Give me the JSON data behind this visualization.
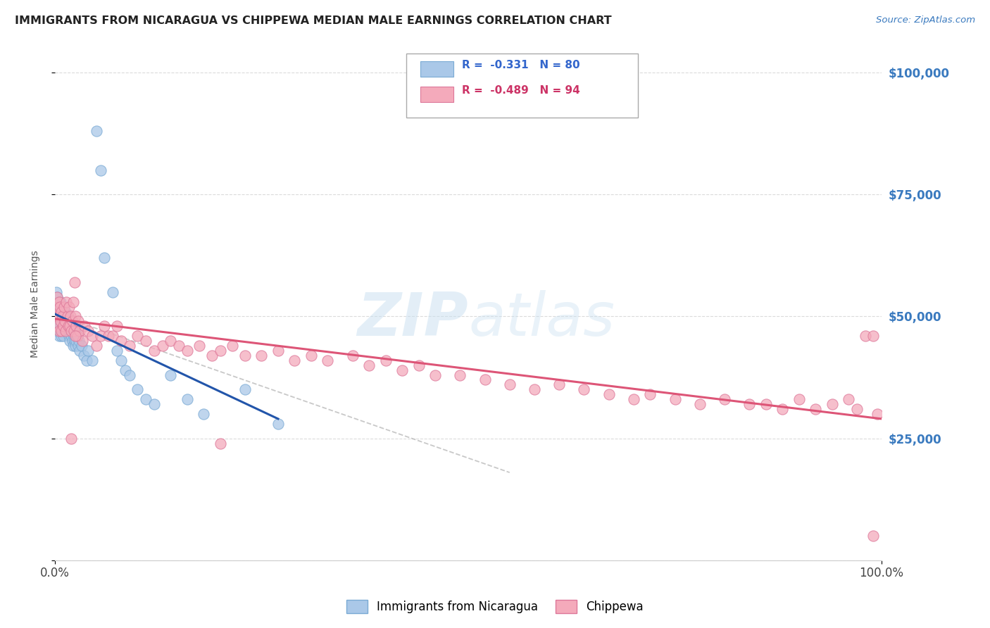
{
  "title": "IMMIGRANTS FROM NICARAGUA VS CHIPPEWA MEDIAN MALE EARNINGS CORRELATION CHART",
  "source": "Source: ZipAtlas.com",
  "ylabel": "Median Male Earnings",
  "yticks": [
    0,
    25000,
    50000,
    75000,
    100000
  ],
  "ytick_labels_right": [
    "",
    "$25,000",
    "$50,000",
    "$75,000",
    "$100,000"
  ],
  "xlim": [
    0.0,
    1.0
  ],
  "ylim": [
    0,
    105000
  ],
  "bg_color": "#ffffff",
  "grid_color": "#d8d8d8",
  "title_color": "#222222",
  "right_tick_color": "#3a7abf",
  "watermark_color": "#c8dff0",
  "blue_scatter_color": "#aac8e8",
  "blue_scatter_edge": "#7aaad4",
  "pink_scatter_color": "#f4aabb",
  "pink_scatter_edge": "#dd7799",
  "blue_trend_color": "#2255aa",
  "pink_trend_color": "#dd5577",
  "dashed_trend_color": "#bbbbbb",
  "legend_R1": "R =  -0.331   N = 80",
  "legend_R2": "R =  -0.489   N = 94",
  "legend_color1": "#3366cc",
  "legend_color2": "#cc3366",
  "blue_x": [
    0.001,
    0.001,
    0.002,
    0.002,
    0.002,
    0.003,
    0.003,
    0.003,
    0.004,
    0.004,
    0.004,
    0.005,
    0.005,
    0.005,
    0.006,
    0.006,
    0.007,
    0.007,
    0.007,
    0.008,
    0.008,
    0.008,
    0.009,
    0.009,
    0.01,
    0.01,
    0.01,
    0.011,
    0.011,
    0.012,
    0.012,
    0.013,
    0.013,
    0.014,
    0.014,
    0.015,
    0.015,
    0.016,
    0.016,
    0.017,
    0.017,
    0.018,
    0.018,
    0.019,
    0.02,
    0.02,
    0.021,
    0.021,
    0.022,
    0.022,
    0.023,
    0.024,
    0.025,
    0.025,
    0.026,
    0.027,
    0.028,
    0.029,
    0.03,
    0.032,
    0.035,
    0.038,
    0.04,
    0.045,
    0.05,
    0.055,
    0.06,
    0.07,
    0.075,
    0.08,
    0.085,
    0.09,
    0.1,
    0.11,
    0.12,
    0.14,
    0.16,
    0.18,
    0.23,
    0.27
  ],
  "blue_y": [
    52000,
    49000,
    55000,
    51000,
    47000,
    54000,
    50000,
    47000,
    53000,
    50000,
    47000,
    52000,
    49000,
    46000,
    51000,
    48000,
    53000,
    50000,
    47000,
    52000,
    49000,
    46000,
    51000,
    48000,
    52000,
    49000,
    46000,
    51000,
    48000,
    50000,
    47000,
    51000,
    48000,
    50000,
    47000,
    49000,
    47000,
    50000,
    47000,
    49000,
    46000,
    48000,
    45000,
    47000,
    49000,
    46000,
    48000,
    45000,
    47000,
    44000,
    46000,
    45000,
    47000,
    44000,
    45000,
    46000,
    44000,
    45000,
    43000,
    44000,
    42000,
    41000,
    43000,
    41000,
    88000,
    80000,
    62000,
    55000,
    43000,
    41000,
    39000,
    38000,
    35000,
    33000,
    32000,
    38000,
    33000,
    30000,
    35000,
    28000
  ],
  "pink_x": [
    0.001,
    0.002,
    0.003,
    0.003,
    0.004,
    0.005,
    0.005,
    0.006,
    0.007,
    0.008,
    0.008,
    0.009,
    0.01,
    0.011,
    0.012,
    0.013,
    0.014,
    0.015,
    0.016,
    0.017,
    0.018,
    0.019,
    0.02,
    0.021,
    0.022,
    0.023,
    0.024,
    0.025,
    0.026,
    0.027,
    0.028,
    0.03,
    0.033,
    0.036,
    0.04,
    0.045,
    0.05,
    0.055,
    0.06,
    0.065,
    0.07,
    0.075,
    0.08,
    0.09,
    0.1,
    0.11,
    0.12,
    0.13,
    0.14,
    0.15,
    0.16,
    0.175,
    0.19,
    0.2,
    0.215,
    0.23,
    0.25,
    0.27,
    0.29,
    0.31,
    0.33,
    0.36,
    0.38,
    0.4,
    0.42,
    0.44,
    0.46,
    0.49,
    0.52,
    0.55,
    0.58,
    0.61,
    0.64,
    0.67,
    0.7,
    0.72,
    0.75,
    0.78,
    0.81,
    0.84,
    0.86,
    0.88,
    0.9,
    0.92,
    0.94,
    0.96,
    0.97,
    0.98,
    0.99,
    0.995,
    0.025,
    0.02,
    0.2,
    0.99
  ],
  "pink_y": [
    50000,
    52000,
    48000,
    54000,
    50000,
    53000,
    47000,
    52000,
    49000,
    51000,
    47000,
    50000,
    48000,
    52000,
    49000,
    47000,
    53000,
    50000,
    48000,
    52000,
    48000,
    50000,
    47000,
    49000,
    53000,
    47000,
    57000,
    50000,
    48000,
    46000,
    49000,
    47000,
    45000,
    48000,
    47000,
    46000,
    44000,
    46000,
    48000,
    46000,
    46000,
    48000,
    45000,
    44000,
    46000,
    45000,
    43000,
    44000,
    45000,
    44000,
    43000,
    44000,
    42000,
    43000,
    44000,
    42000,
    42000,
    43000,
    41000,
    42000,
    41000,
    42000,
    40000,
    41000,
    39000,
    40000,
    38000,
    38000,
    37000,
    36000,
    35000,
    36000,
    35000,
    34000,
    33000,
    34000,
    33000,
    32000,
    33000,
    32000,
    32000,
    31000,
    33000,
    31000,
    32000,
    33000,
    31000,
    46000,
    46000,
    30000,
    46000,
    25000,
    24000,
    5000
  ],
  "blue_trend_x": [
    0.0,
    0.27
  ],
  "blue_trend_y": [
    50500,
    29000
  ],
  "pink_trend_x": [
    0.0,
    1.0
  ],
  "pink_trend_y": [
    49500,
    29000
  ],
  "dash_trend_x": [
    0.0,
    0.55
  ],
  "dash_trend_y": [
    50500,
    18000
  ]
}
